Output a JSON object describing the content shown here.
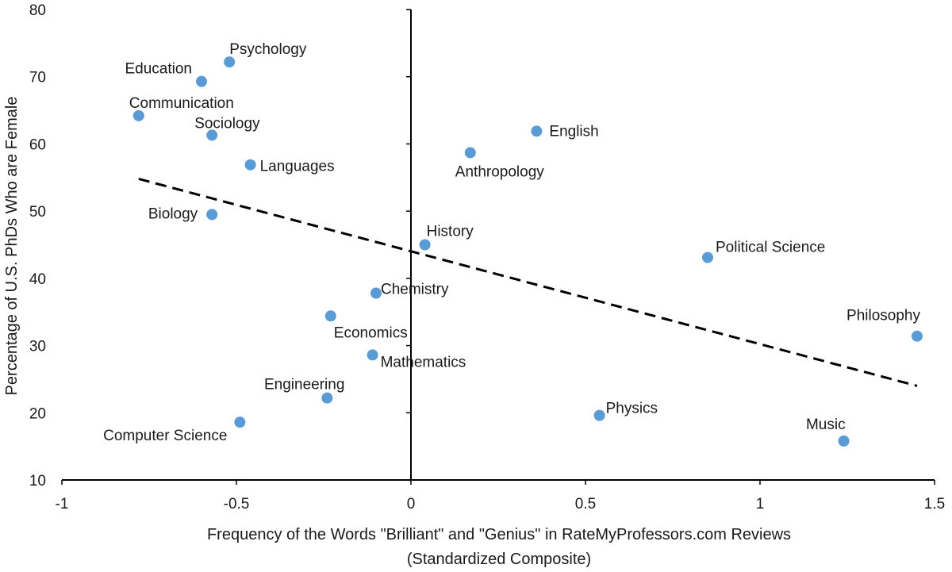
{
  "chart_data": {
    "type": "scatter",
    "title": "",
    "xlabel": "Frequency of the Words \"Brilliant\" and \"Genius\" in RateMyProfessors.com Reviews",
    "xlabel2": "(Standardized Composite)",
    "ylabel": "Percentage of U.S. PhDs Who are Female",
    "xlim": [
      -1,
      1.5
    ],
    "ylim": [
      10,
      80
    ],
    "xticks": [
      -1,
      -0.5,
      0,
      0.5,
      1,
      1.5
    ],
    "xtick_labels": [
      "-1",
      "-0.5",
      "0",
      "0.5",
      "1",
      "1.5"
    ],
    "yticks": [
      10,
      20,
      30,
      40,
      50,
      60,
      70,
      80
    ],
    "ytick_labels": [
      "10",
      "20",
      "30",
      "40",
      "50",
      "60",
      "70",
      "80"
    ],
    "marker_color": "#5b9bd5",
    "trendline": {
      "style": "dashed",
      "color": "#000000",
      "x1": -0.78,
      "y1": 54.8,
      "x2": 1.45,
      "y2": 24.0
    },
    "points": [
      {
        "label": "Psychology",
        "x": -0.52,
        "y": 72.2
      },
      {
        "label": "Education",
        "x": -0.6,
        "y": 69.3
      },
      {
        "label": "Communication",
        "x": -0.78,
        "y": 64.2
      },
      {
        "label": "Sociology",
        "x": -0.57,
        "y": 61.3
      },
      {
        "label": "Languages",
        "x": -0.46,
        "y": 56.9
      },
      {
        "label": "Biology",
        "x": -0.57,
        "y": 49.5
      },
      {
        "label": "English",
        "x": 0.36,
        "y": 61.9
      },
      {
        "label": "Anthropology",
        "x": 0.17,
        "y": 58.7
      },
      {
        "label": "History",
        "x": 0.04,
        "y": 45.0
      },
      {
        "label": "Political Science",
        "x": 0.85,
        "y": 43.1
      },
      {
        "label": "Chemistry",
        "x": -0.1,
        "y": 37.8
      },
      {
        "label": "Economics",
        "x": -0.23,
        "y": 34.4
      },
      {
        "label": "Mathematics",
        "x": -0.11,
        "y": 28.6
      },
      {
        "label": "Philosophy",
        "x": 1.45,
        "y": 31.4
      },
      {
        "label": "Engineering",
        "x": -0.24,
        "y": 22.2
      },
      {
        "label": "Computer Science",
        "x": -0.49,
        "y": 18.6
      },
      {
        "label": "Physics",
        "x": 0.54,
        "y": 19.6
      },
      {
        "label": "Music",
        "x": 1.24,
        "y": 15.8
      }
    ]
  }
}
